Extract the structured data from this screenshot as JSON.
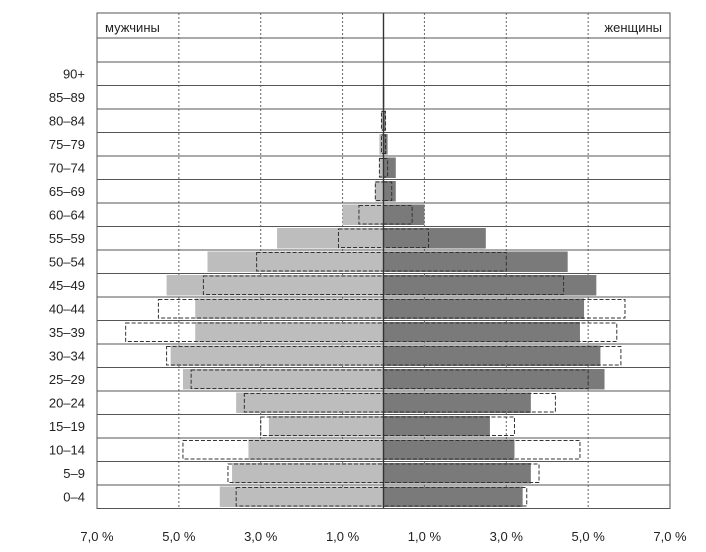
{
  "chart_data": {
    "type": "bar",
    "orientation": "horizontal",
    "layout": "population-pyramid",
    "title": "",
    "xlabel": "",
    "ylabel": "",
    "xlim": [
      -7.0,
      7.0
    ],
    "x_ticks": [
      -7.0,
      -5.0,
      -3.0,
      -1.0,
      1.0,
      3.0,
      5.0,
      7.0
    ],
    "x_tick_labels": [
      "7,0 %",
      "5,0 %",
      "3,0 %",
      "1,0 %",
      "1,0 %",
      "3,0 %",
      "5,0 %",
      "7,0 %"
    ],
    "grid": true,
    "categories": [
      "0–4",
      "5–9",
      "10–14",
      "15–19",
      "20–24",
      "25–29",
      "30–34",
      "35–39",
      "40–44",
      "45–49",
      "50–54",
      "55–59",
      "60–64",
      "65–69",
      "70–74",
      "75–79",
      "80–84",
      "85–89",
      "90+"
    ],
    "category_order": "bottom-to-top",
    "side_labels": {
      "left": "мужчины",
      "right": "женщины"
    },
    "series": [
      {
        "side": "left",
        "style": "filled",
        "color": "#bdbdbd",
        "values": [
          4.0,
          3.7,
          3.3,
          2.8,
          3.6,
          4.9,
          5.2,
          4.6,
          4.6,
          5.3,
          4.3,
          2.6,
          1.0,
          0.2,
          0.1,
          0.1,
          0.05,
          0.02,
          0.0
        ]
      },
      {
        "side": "right",
        "style": "filled",
        "color": "#7a7a7a",
        "values": [
          3.4,
          3.6,
          3.2,
          2.6,
          3.6,
          5.4,
          5.3,
          4.8,
          4.9,
          5.2,
          4.5,
          2.5,
          1.0,
          0.3,
          0.3,
          0.1,
          0.05,
          0.02,
          0.0
        ]
      },
      {
        "side": "left",
        "style": "outline-dashed",
        "values": [
          3.6,
          3.8,
          4.9,
          3.0,
          3.4,
          4.7,
          5.3,
          6.3,
          5.5,
          4.4,
          3.1,
          1.1,
          0.6,
          0.2,
          0.1,
          0.05,
          0.05,
          0.0,
          0.0
        ]
      },
      {
        "side": "right",
        "style": "outline-dashed",
        "values": [
          3.5,
          3.8,
          4.8,
          3.2,
          4.2,
          5.0,
          5.8,
          5.7,
          5.9,
          4.4,
          3.0,
          1.1,
          0.7,
          0.2,
          0.1,
          0.05,
          0.05,
          0.0,
          0.0
        ]
      }
    ],
    "colors": {
      "frame": "#555555",
      "grid": "#666666",
      "divider": "#333333"
    }
  }
}
